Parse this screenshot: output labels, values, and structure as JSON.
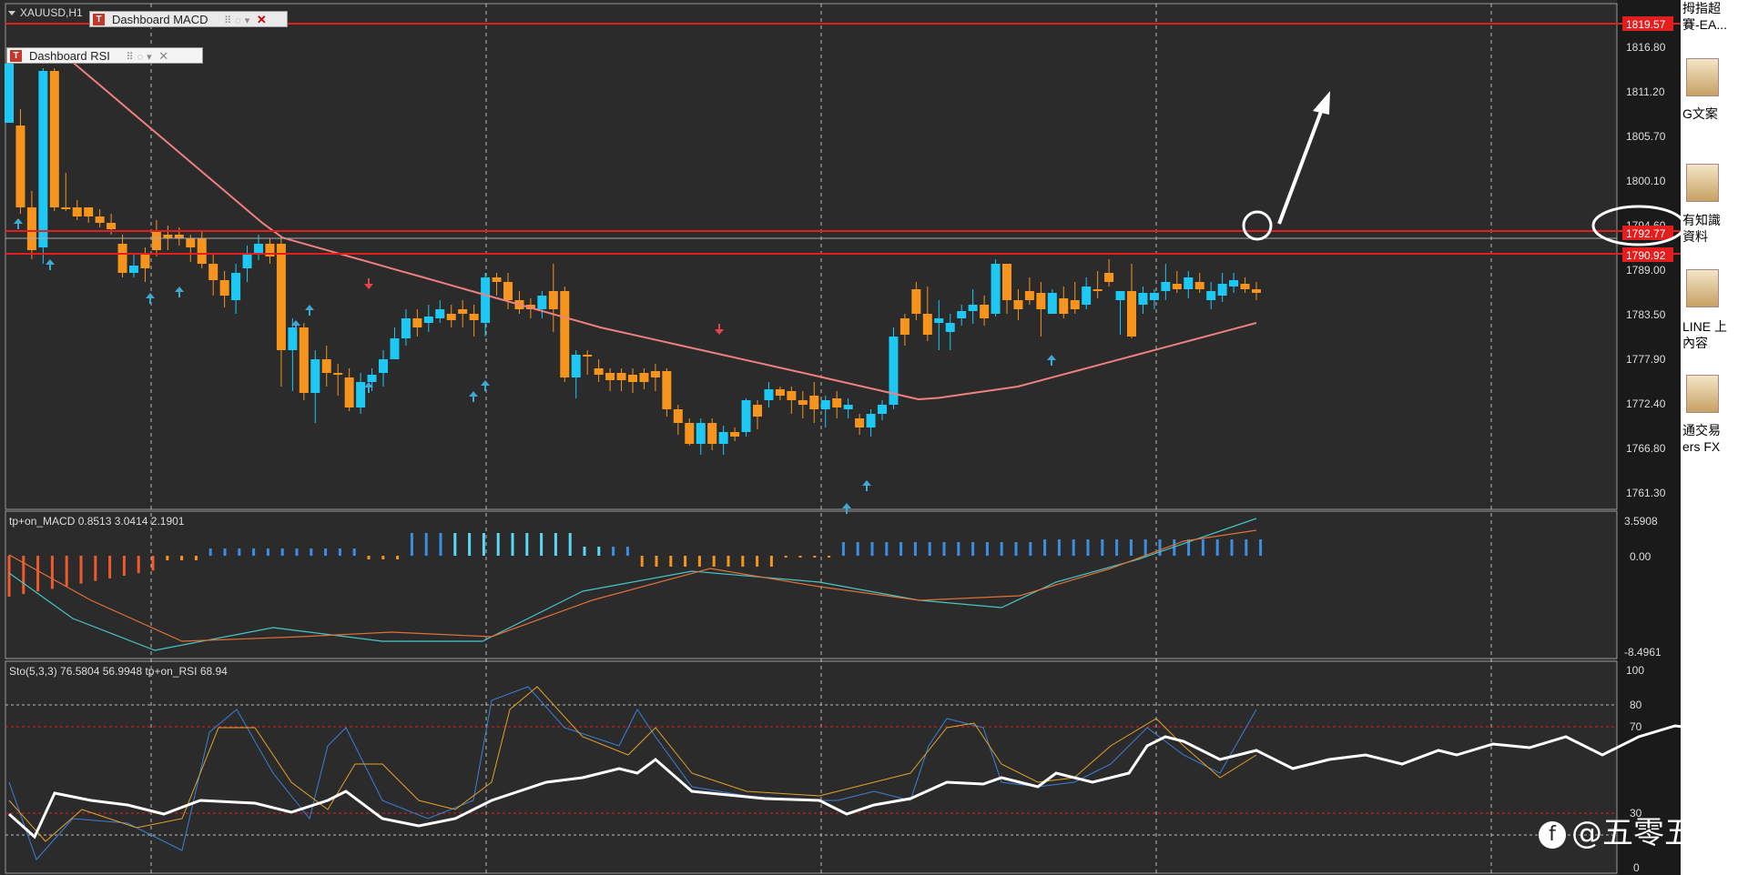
{
  "symbol": "XAUUSD,H1",
  "panels": {
    "macd_dashboard": {
      "label": "Dashboard MACD"
    },
    "rsi_dashboard": {
      "label": "Dashboard RSI"
    }
  },
  "price_axis": [
    "1816.80",
    "1811.20",
    "1805.70",
    "1800.10",
    "1794.60",
    "1789.00",
    "1783.50",
    "1777.90",
    "1772.40",
    "1766.80",
    "1761.30"
  ],
  "price_tags": {
    "top": "1819.57",
    "mid": "1792.77",
    "low": "1790.92"
  },
  "macd_header": "tp+on_MACD 0.8513 3.0414 2.1901",
  "macd_axis": {
    "max": "3.5908",
    "zero": "0.00",
    "min": "-8.4961"
  },
  "sto_header": "Sto(5,3,3) 76.5804 56.9948   tp+on_RSI 68.94",
  "sto_axis": [
    "100",
    "80",
    "70",
    "30",
    "0"
  ],
  "desktop": [
    {
      "text": "拇指超"
    },
    {
      "text": "賽-EA..."
    },
    {
      "text": "G文案"
    },
    {
      "text": "有知識"
    },
    {
      "text": "資料"
    },
    {
      "text": "LINE 上"
    },
    {
      "text": "內容"
    },
    {
      "text": "通交易"
    },
    {
      "text": "ers FX"
    }
  ],
  "watermark": "@五零五甲",
  "colors": {
    "bull": "#1ec8f5",
    "bear": "#f7941d",
    "bg": "#2b2b2b",
    "grid": "#dcdcdc",
    "hline": "#e41e1e",
    "ma": "#f08080"
  }
}
